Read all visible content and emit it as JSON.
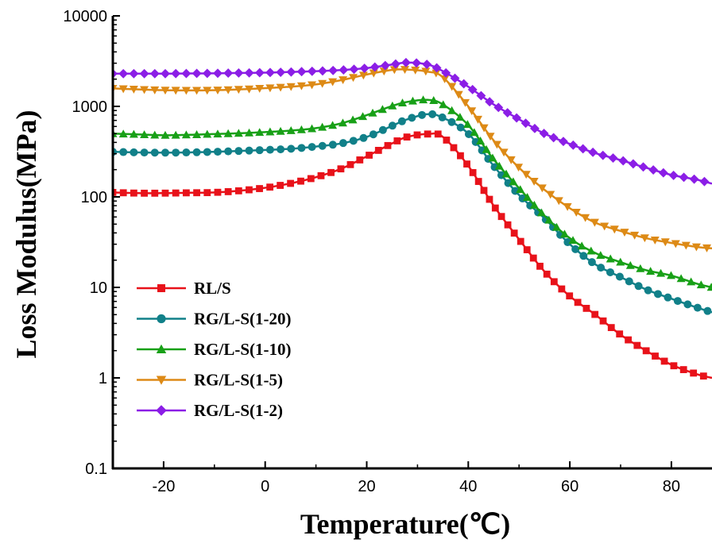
{
  "chart_data": {
    "type": "line",
    "xlabel": "Temperature(℃)",
    "ylabel": "Loss Modulus(MPa)",
    "xlim": [
      -30,
      88
    ],
    "ylim": [
      0.1,
      10000
    ],
    "y_scale": "log",
    "x_ticks": [
      -20,
      0,
      20,
      40,
      60,
      80
    ],
    "x_tick_labels": [
      "-20",
      "0",
      "20",
      "40",
      "60",
      "80"
    ],
    "y_ticks": [
      0.1,
      1,
      10,
      100,
      1000,
      10000
    ],
    "y_tick_labels": [
      "0.1",
      "1",
      "10",
      "100",
      "1000",
      "10000"
    ],
    "grid": false,
    "legend_position": "lower-left",
    "x": [
      -30,
      -25,
      -20,
      -15,
      -10,
      -5,
      0,
      5,
      10,
      15,
      20,
      25,
      28,
      32,
      35,
      40,
      45,
      50,
      55,
      60,
      65,
      70,
      75,
      80,
      85,
      88
    ],
    "series": [
      {
        "name": "RL/S",
        "color": "#e8121a",
        "marker": "square",
        "values": [
          112,
          110,
          110,
          111,
          112,
          117,
          126,
          141,
          165,
          205,
          280,
          390,
          460,
          495,
          460,
          220,
          80,
          34,
          15,
          8,
          5,
          3,
          2,
          1.4,
          1.1,
          1.0
        ]
      },
      {
        "name": "RG/L-S(1-20)",
        "color": "#118089",
        "marker": "circle",
        "values": [
          315,
          310,
          308,
          310,
          315,
          322,
          330,
          340,
          360,
          390,
          460,
          610,
          720,
          820,
          750,
          500,
          220,
          105,
          58,
          30,
          18,
          13,
          9.5,
          7.5,
          6.0,
          5.3
        ]
      },
      {
        "name": "RG/L-S(1-10)",
        "color": "#18a017",
        "marker": "triangle-up",
        "values": [
          500,
          490,
          480,
          485,
          495,
          505,
          520,
          540,
          575,
          650,
          800,
          1010,
          1120,
          1180,
          1050,
          620,
          260,
          125,
          62,
          35,
          24,
          19,
          15.5,
          13.5,
          11,
          10
        ]
      },
      {
        "name": "RG/L-S(1-5)",
        "color": "#dd8a16",
        "marker": "triangle-down",
        "values": [
          1580,
          1540,
          1510,
          1500,
          1510,
          1540,
          1590,
          1650,
          1750,
          1950,
          2250,
          2530,
          2550,
          2420,
          2100,
          1000,
          420,
          210,
          120,
          75,
          52,
          42,
          35,
          31,
          28,
          27
        ]
      },
      {
        "name": "RG/L-S(1-2)",
        "color": "#8b1ee6",
        "marker": "diamond",
        "values": [
          2300,
          2300,
          2300,
          2310,
          2320,
          2340,
          2360,
          2400,
          2450,
          2520,
          2650,
          2900,
          3050,
          2900,
          2450,
          1650,
          1050,
          720,
          500,
          385,
          305,
          255,
          210,
          175,
          155,
          140
        ]
      }
    ]
  }
}
